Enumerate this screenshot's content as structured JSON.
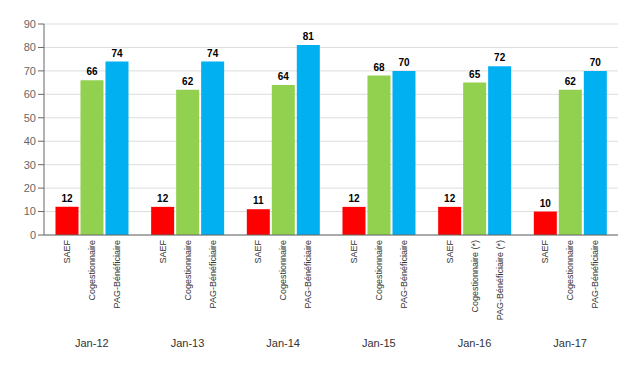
{
  "chart_data": {
    "type": "bar",
    "categories": [
      "Jan-12",
      "Jan-13",
      "Jan-14",
      "Jan-15",
      "Jan-16",
      "Jan-17"
    ],
    "series": [
      {
        "name": "SAEF",
        "color": "#FF0000",
        "values": [
          12,
          12,
          11,
          12,
          12,
          10
        ],
        "labels": [
          "SAEF",
          "SAEF",
          "SAEF",
          "SAEF",
          "SAEF",
          "SAEF"
        ]
      },
      {
        "name": "Cogestionnaire",
        "color": "#92D050",
        "values": [
          66,
          62,
          64,
          68,
          65,
          62
        ],
        "labels": [
          "Cogestionnaire",
          "Cogestionnaire",
          "Cogestionnaire",
          "Cogestionnaire",
          "Cogestionnaire (*)",
          "Cogestionnaire"
        ]
      },
      {
        "name": "PAG-Bénéficiaire",
        "color": "#00B0F0",
        "values": [
          74,
          74,
          81,
          70,
          72,
          70
        ],
        "labels": [
          "PAG-Bénéficiaire",
          "PAG-Bénéficiaire",
          "PAG-Bénéficiaire",
          "PAG-Bénéficiaire",
          "PAG-Bénéficiaire (*)",
          "PAG-Bénéficiaire"
        ]
      }
    ],
    "ylim": [
      0,
      90
    ],
    "yticks": [
      0,
      10,
      20,
      30,
      40,
      50,
      60,
      70,
      80,
      90
    ],
    "grid": true,
    "data_labels": true
  }
}
